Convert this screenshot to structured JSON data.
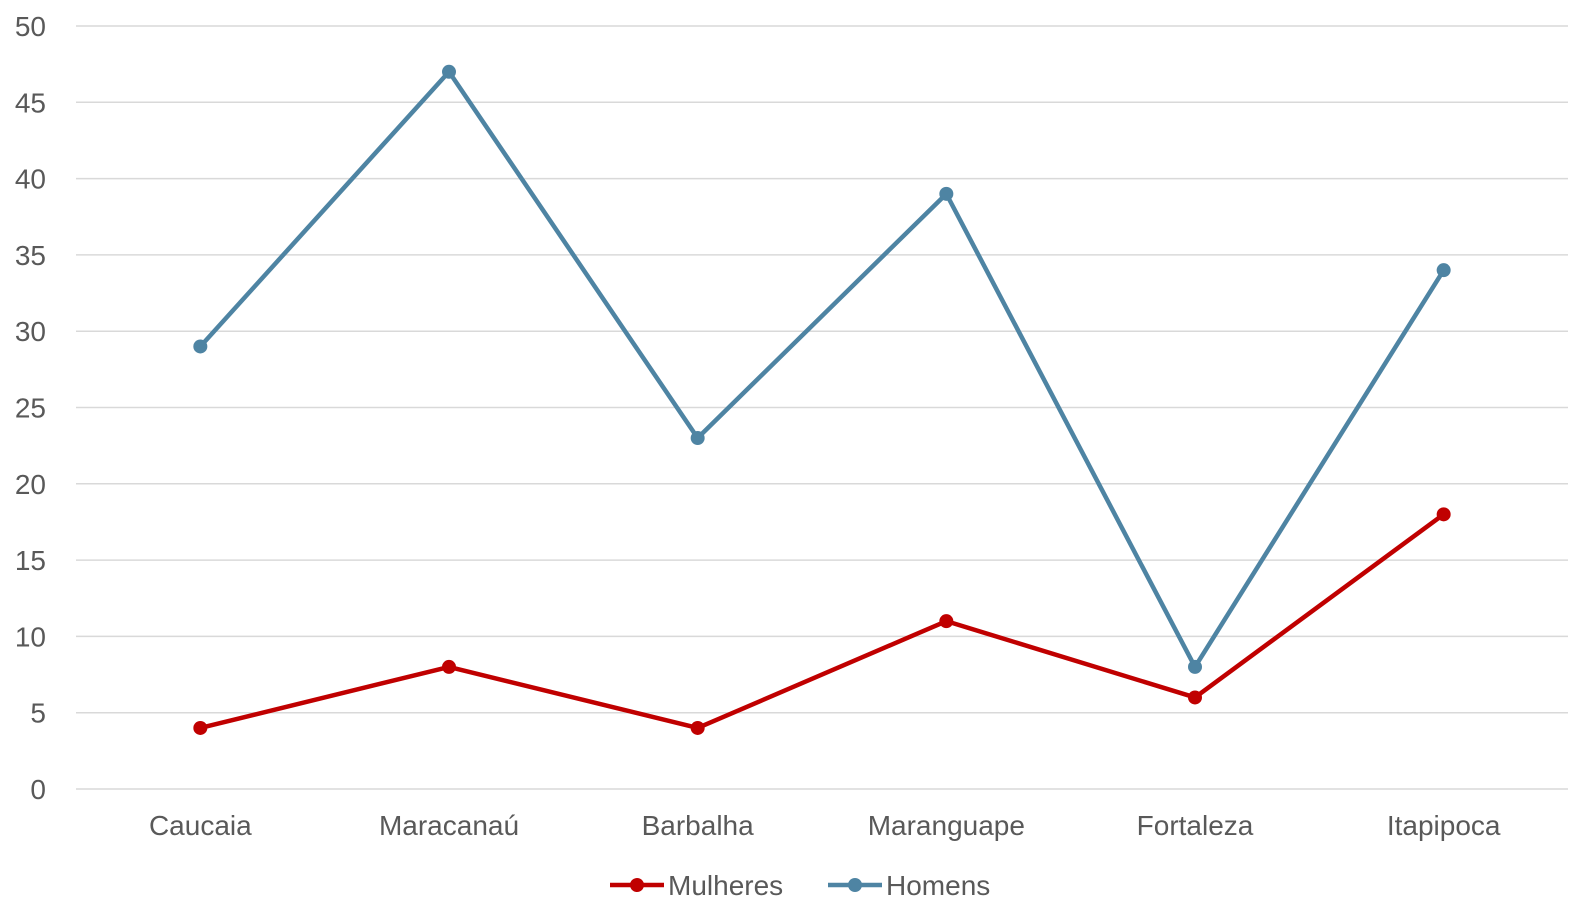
{
  "chart_data": {
    "type": "line",
    "categories": [
      "Caucaia",
      "Maracanaú",
      "Barbalha",
      "Maranguape",
      "Fortaleza",
      "Itapipoca"
    ],
    "series": [
      {
        "name": "Mulheres",
        "color": "#c00000",
        "values": [
          4,
          8,
          4,
          11,
          6,
          18
        ]
      },
      {
        "name": "Homens",
        "color": "#4e84a3",
        "values": [
          29,
          47,
          23,
          39,
          8,
          34
        ]
      }
    ],
    "ylim": [
      0,
      50
    ],
    "yticks": [
      0,
      5,
      10,
      15,
      20,
      25,
      30,
      35,
      40,
      45,
      50
    ],
    "grid": true,
    "gridColor": "#d9d9d9",
    "legend_position": "bottom"
  }
}
